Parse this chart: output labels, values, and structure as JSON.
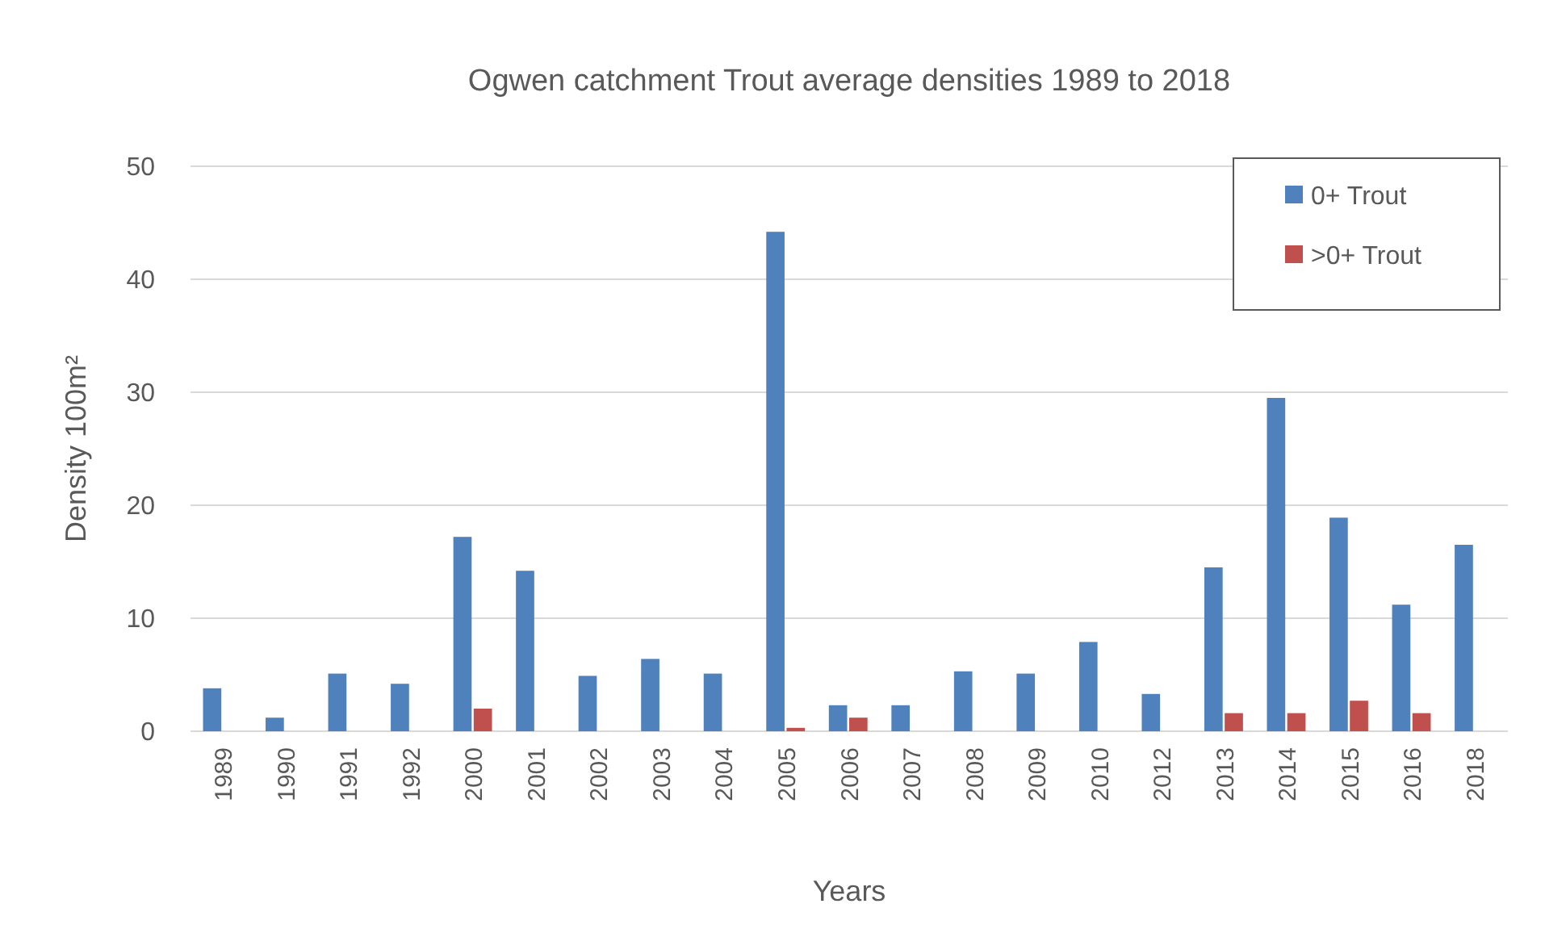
{
  "chart_data": {
    "type": "bar",
    "title": "Ogwen catchment Trout average densities 1989 to 2018",
    "xlabel": "Years",
    "ylabel": "Density 100m²",
    "categories": [
      "1989",
      "1990",
      "1991",
      "1992",
      "2000",
      "2001",
      "2002",
      "2003",
      "2004",
      "2005",
      "2006",
      "2007",
      "2008",
      "2009",
      "2010",
      "2012",
      "2013",
      "2014",
      "2015",
      "2016",
      "2018"
    ],
    "series": [
      {
        "name": "0+ Trout",
        "color": "#4f81bd",
        "values": [
          3.8,
          1.2,
          5.1,
          4.2,
          17.2,
          14.2,
          4.9,
          6.4,
          5.1,
          44.2,
          2.3,
          2.3,
          5.3,
          5.1,
          7.9,
          3.3,
          14.5,
          29.5,
          18.9,
          11.2,
          16.5
        ]
      },
      {
        "name": ">0+ Trout",
        "color": "#c0504d",
        "values": [
          null,
          null,
          null,
          null,
          2.0,
          null,
          null,
          null,
          null,
          0.3,
          1.2,
          null,
          null,
          null,
          null,
          null,
          1.6,
          1.6,
          2.7,
          1.6,
          null
        ]
      }
    ],
    "ylim": [
      0,
      50
    ],
    "yticks": [
      0,
      10,
      20,
      30,
      40,
      50
    ],
    "grid": "y",
    "legend": "top right"
  }
}
